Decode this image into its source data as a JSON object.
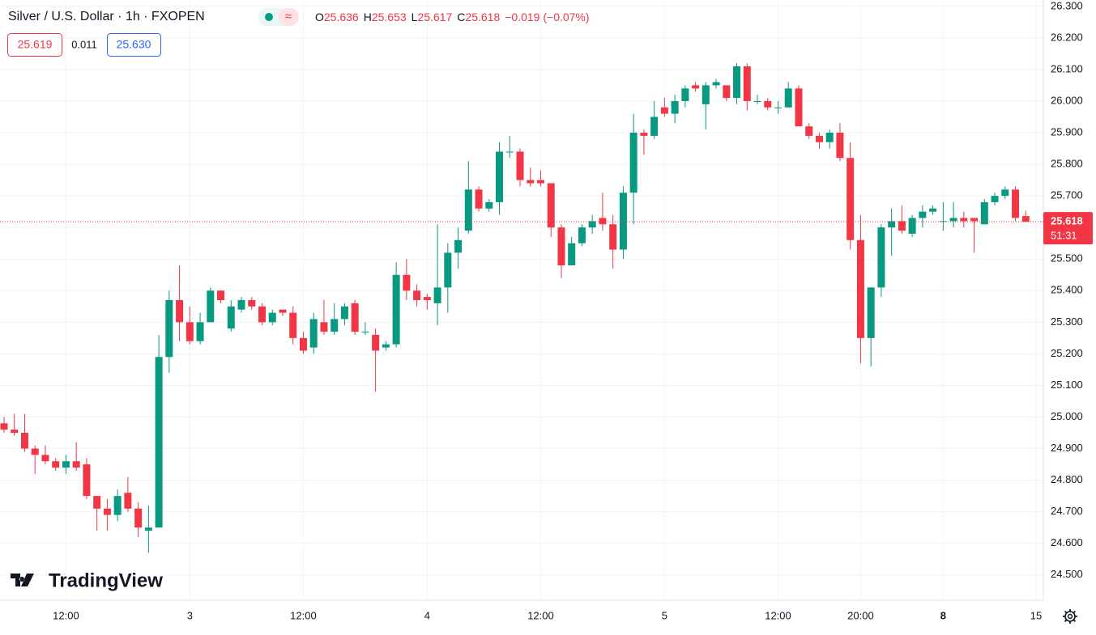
{
  "chart_data": {
    "type": "candlestick",
    "header": {
      "title": "Silver / U.S. Dollar · 1h · FXOPEN",
      "ohlc": [
        {
          "label": "O",
          "value": "25.636"
        },
        {
          "label": "H",
          "value": "25.653"
        },
        {
          "label": "L",
          "value": "25.617"
        },
        {
          "label": "C",
          "value": "25.618"
        }
      ],
      "change": "−0.019 (−0.07%)",
      "bid": "25.619",
      "spread": "0.011",
      "ask": "25.630"
    },
    "brand": "TradingView",
    "last_price": {
      "value": 25.618,
      "label": "25.618"
    },
    "countdown": "51:31",
    "up_color": "#089981",
    "down_color": "#f23645",
    "grid": true,
    "ylim": [
      24.42,
      26.32
    ],
    "yticks": [
      {
        "value": 24.5,
        "label": "24.500"
      },
      {
        "value": 24.6,
        "label": "24.600"
      },
      {
        "value": 24.7,
        "label": "24.700"
      },
      {
        "value": 24.8,
        "label": "24.800"
      },
      {
        "value": 24.9,
        "label": "24.900"
      },
      {
        "value": 25.0,
        "label": "25.000"
      },
      {
        "value": 25.1,
        "label": "25.100"
      },
      {
        "value": 25.2,
        "label": "25.200"
      },
      {
        "value": 25.3,
        "label": "25.300"
      },
      {
        "value": 25.4,
        "label": "25.400"
      },
      {
        "value": 25.5,
        "label": "25.500"
      },
      {
        "value": 25.6,
        "label": "25.600"
      },
      {
        "value": 25.7,
        "label": "25.700"
      },
      {
        "value": 25.8,
        "label": "25.800"
      },
      {
        "value": 25.9,
        "label": "25.900"
      },
      {
        "value": 26.0,
        "label": "26.000"
      },
      {
        "value": 26.1,
        "label": "26.100"
      },
      {
        "value": 26.2,
        "label": "26.200"
      },
      {
        "value": 26.3,
        "label": "26.300"
      }
    ],
    "categories": [
      null,
      null,
      null,
      null,
      null,
      null,
      "12:00",
      null,
      null,
      null,
      null,
      null,
      null,
      null,
      null,
      null,
      null,
      null,
      "3",
      null,
      null,
      null,
      null,
      null,
      null,
      null,
      null,
      null,
      null,
      "12:00",
      null,
      null,
      null,
      null,
      null,
      null,
      null,
      null,
      null,
      null,
      null,
      "4",
      null,
      null,
      null,
      null,
      null,
      null,
      null,
      null,
      null,
      null,
      "12:00",
      null,
      null,
      null,
      null,
      null,
      null,
      null,
      null,
      null,
      null,
      null,
      "5",
      null,
      null,
      null,
      null,
      null,
      null,
      null,
      null,
      null,
      null,
      "12:00",
      null,
      null,
      null,
      null,
      null,
      null,
      null,
      "20:00",
      null,
      null,
      null,
      null,
      null,
      null,
      null,
      "8",
      null,
      null,
      null,
      null,
      null,
      null,
      null,
      null,
      "15"
    ],
    "open": [
      24.98,
      24.96,
      24.95,
      24.9,
      24.88,
      24.86,
      24.84,
      24.86,
      24.85,
      24.75,
      24.71,
      24.69,
      24.76,
      24.71,
      24.64,
      24.65,
      25.19,
      25.37,
      25.3,
      25.24,
      25.3,
      25.4,
      25.28,
      25.34,
      25.37,
      25.35,
      25.3,
      25.34,
      25.33,
      25.25,
      25.22,
      25.3,
      25.27,
      25.31,
      25.36,
      25.27,
      25.26,
      25.22,
      25.23,
      25.45,
      25.4,
      25.38,
      25.36,
      25.41,
      25.52,
      25.59,
      25.72,
      25.66,
      25.68,
      25.84,
      25.84,
      25.75,
      25.75,
      25.74,
      25.6,
      25.48,
      25.55,
      25.6,
      25.63,
      25.61,
      25.53,
      25.71,
      25.9,
      25.89,
      25.98,
      25.96,
      26.0,
      26.05,
      25.99,
      26.05,
      26.05,
      26.01,
      26.11,
      26.0,
      26.0,
      25.98,
      25.98,
      26.04,
      25.92,
      25.89,
      25.87,
      25.9,
      25.82,
      25.56,
      25.25,
      25.41,
      25.6,
      25.62,
      25.58,
      25.63,
      25.65,
      25.62,
      25.62,
      25.63,
      25.63,
      25.61,
      25.68,
      25.7,
      25.72,
      25.636,
      null
    ],
    "high": [
      25.0,
      25.01,
      25.01,
      24.91,
      24.91,
      24.87,
      24.88,
      24.92,
      24.87,
      24.75,
      24.74,
      24.77,
      24.81,
      24.73,
      24.72,
      25.26,
      25.4,
      25.48,
      25.35,
      25.33,
      25.41,
      25.4,
      25.37,
      25.38,
      25.38,
      25.36,
      25.34,
      25.34,
      25.35,
      25.27,
      25.33,
      25.37,
      25.36,
      25.36,
      25.37,
      25.3,
      25.28,
      25.24,
      25.49,
      25.5,
      25.42,
      25.39,
      25.61,
      25.55,
      25.6,
      25.81,
      25.73,
      25.69,
      25.87,
      25.89,
      25.85,
      25.79,
      25.78,
      25.74,
      25.61,
      25.57,
      25.61,
      25.64,
      25.71,
      25.64,
      25.73,
      25.96,
      25.91,
      26.0,
      26.01,
      26.02,
      26.05,
      26.06,
      26.06,
      26.07,
      26.05,
      26.12,
      26.12,
      26.02,
      26.01,
      26.0,
      26.06,
      26.05,
      25.93,
      25.9,
      25.91,
      25.93,
      25.87,
      25.64,
      25.41,
      25.61,
      25.66,
      25.67,
      25.64,
      25.67,
      25.67,
      25.68,
      25.68,
      25.65,
      25.63,
      25.69,
      25.71,
      25.73,
      25.73,
      25.653,
      null
    ],
    "low": [
      24.95,
      24.94,
      24.89,
      24.82,
      24.85,
      24.83,
      24.82,
      24.83,
      24.74,
      24.64,
      24.64,
      24.67,
      24.7,
      24.62,
      24.57,
      24.65,
      25.14,
      25.24,
      25.23,
      25.23,
      25.3,
      25.36,
      25.27,
      25.33,
      25.34,
      25.29,
      25.29,
      25.32,
      25.23,
      25.2,
      25.2,
      25.26,
      25.26,
      25.29,
      25.26,
      25.26,
      25.08,
      25.21,
      25.22,
      25.37,
      25.35,
      25.34,
      25.29,
      25.33,
      25.47,
      25.58,
      25.65,
      25.65,
      25.64,
      25.82,
      25.73,
      25.73,
      25.73,
      25.57,
      25.44,
      25.48,
      25.54,
      25.58,
      25.59,
      25.47,
      25.5,
      25.61,
      25.83,
      25.88,
      25.95,
      25.93,
      25.98,
      26.03,
      25.91,
      26.04,
      26.0,
      25.99,
      25.97,
      25.99,
      25.97,
      25.96,
      25.98,
      25.92,
      25.88,
      25.85,
      25.85,
      25.81,
      25.53,
      25.17,
      25.16,
      25.38,
      25.51,
      25.58,
      25.57,
      25.6,
      25.64,
      25.59,
      25.6,
      25.6,
      25.52,
      25.61,
      25.67,
      25.69,
      25.62,
      25.617,
      null
    ],
    "close": [
      24.96,
      24.95,
      24.9,
      24.88,
      24.86,
      24.84,
      24.86,
      24.84,
      24.75,
      24.71,
      24.69,
      24.75,
      24.71,
      24.65,
      24.65,
      25.19,
      25.37,
      25.3,
      25.24,
      25.3,
      25.4,
      25.37,
      25.35,
      25.37,
      25.35,
      25.3,
      25.33,
      25.33,
      25.25,
      25.21,
      25.31,
      25.27,
      25.31,
      25.35,
      25.27,
      25.27,
      25.21,
      25.23,
      25.45,
      25.4,
      25.37,
      25.37,
      25.41,
      25.52,
      25.56,
      25.72,
      25.66,
      25.68,
      25.84,
      25.84,
      25.75,
      25.74,
      25.74,
      25.6,
      25.48,
      25.55,
      25.6,
      25.62,
      25.61,
      25.53,
      25.71,
      25.9,
      25.89,
      25.95,
      25.96,
      26.0,
      26.04,
      26.04,
      26.05,
      26.06,
      26.01,
      26.11,
      26.0,
      26.0,
      25.98,
      25.98,
      26.04,
      25.92,
      25.89,
      25.87,
      25.9,
      25.82,
      25.56,
      25.25,
      25.41,
      25.6,
      25.62,
      25.59,
      25.63,
      25.65,
      25.66,
      25.62,
      25.63,
      25.62,
      25.62,
      25.68,
      25.7,
      25.72,
      25.63,
      25.618,
      null
    ]
  }
}
